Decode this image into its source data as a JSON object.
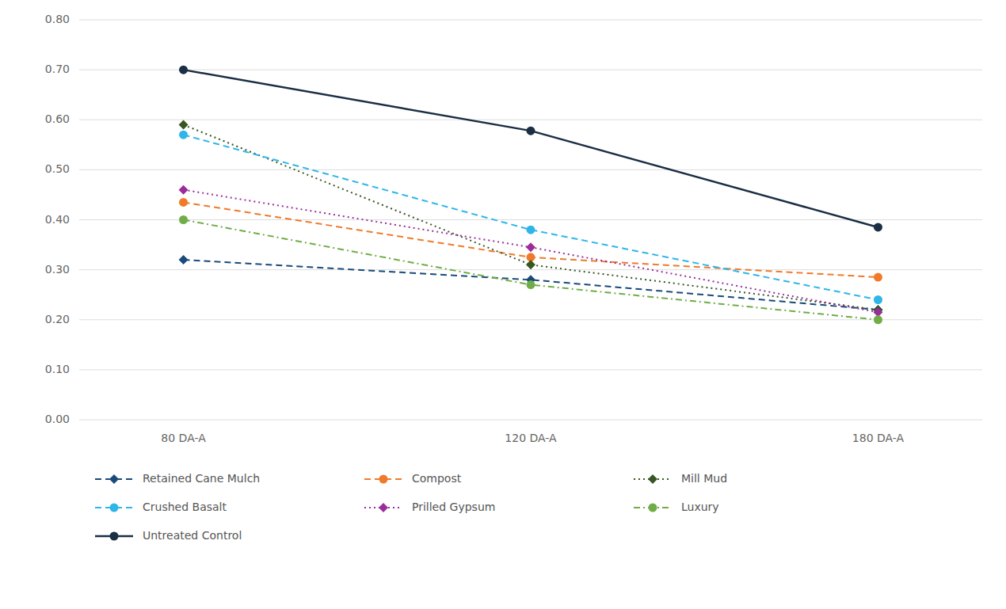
{
  "chart_data": {
    "type": "line",
    "categories": [
      "80 DA-A",
      "120 DA-A",
      "180 DA-A"
    ],
    "series": [
      {
        "name": "Retained Cane Mulch",
        "color": "#1a4a7a",
        "line_style": "dashed",
        "marker": "diamond",
        "values": [
          0.32,
          0.28,
          0.22
        ]
      },
      {
        "name": "Compost",
        "color": "#f07a2a",
        "line_style": "dashed",
        "marker": "circle",
        "values": [
          0.435,
          0.325,
          0.285
        ]
      },
      {
        "name": "Mill Mud",
        "color": "#375623",
        "line_style": "dotted",
        "marker": "diamond",
        "values": [
          0.59,
          0.31,
          0.22
        ]
      },
      {
        "name": "Crushed Basalt",
        "color": "#2eb6e8",
        "line_style": "dashed",
        "marker": "circle",
        "values": [
          0.57,
          0.38,
          0.24
        ]
      },
      {
        "name": "Prilled Gypsum",
        "color": "#9b2d9b",
        "line_style": "dotted",
        "marker": "diamond",
        "values": [
          0.46,
          0.345,
          0.215
        ]
      },
      {
        "name": "Luxury",
        "color": "#70ad47",
        "line_style": "dashdot",
        "marker": "circle",
        "values": [
          0.4,
          0.27,
          0.2
        ]
      },
      {
        "name": "Untreated Control",
        "color": "#1a2e44",
        "line_style": "solid",
        "marker": "circle",
        "values": [
          0.7,
          0.578,
          0.385
        ]
      }
    ],
    "ylim": [
      0.0,
      0.8
    ],
    "yticks": [
      {
        "value": 0.0,
        "label": "0.00"
      },
      {
        "value": 0.1,
        "label": "0.10"
      },
      {
        "value": 0.2,
        "label": "0.20"
      },
      {
        "value": 0.3,
        "label": "0.30"
      },
      {
        "value": 0.4,
        "label": "0.40"
      },
      {
        "value": 0.5,
        "label": "0.50"
      },
      {
        "value": 0.6,
        "label": "0.60"
      },
      {
        "value": 0.7,
        "label": "0.70"
      },
      {
        "value": 0.8,
        "label": "0.80"
      }
    ],
    "grid": true,
    "legend": "bottom"
  }
}
